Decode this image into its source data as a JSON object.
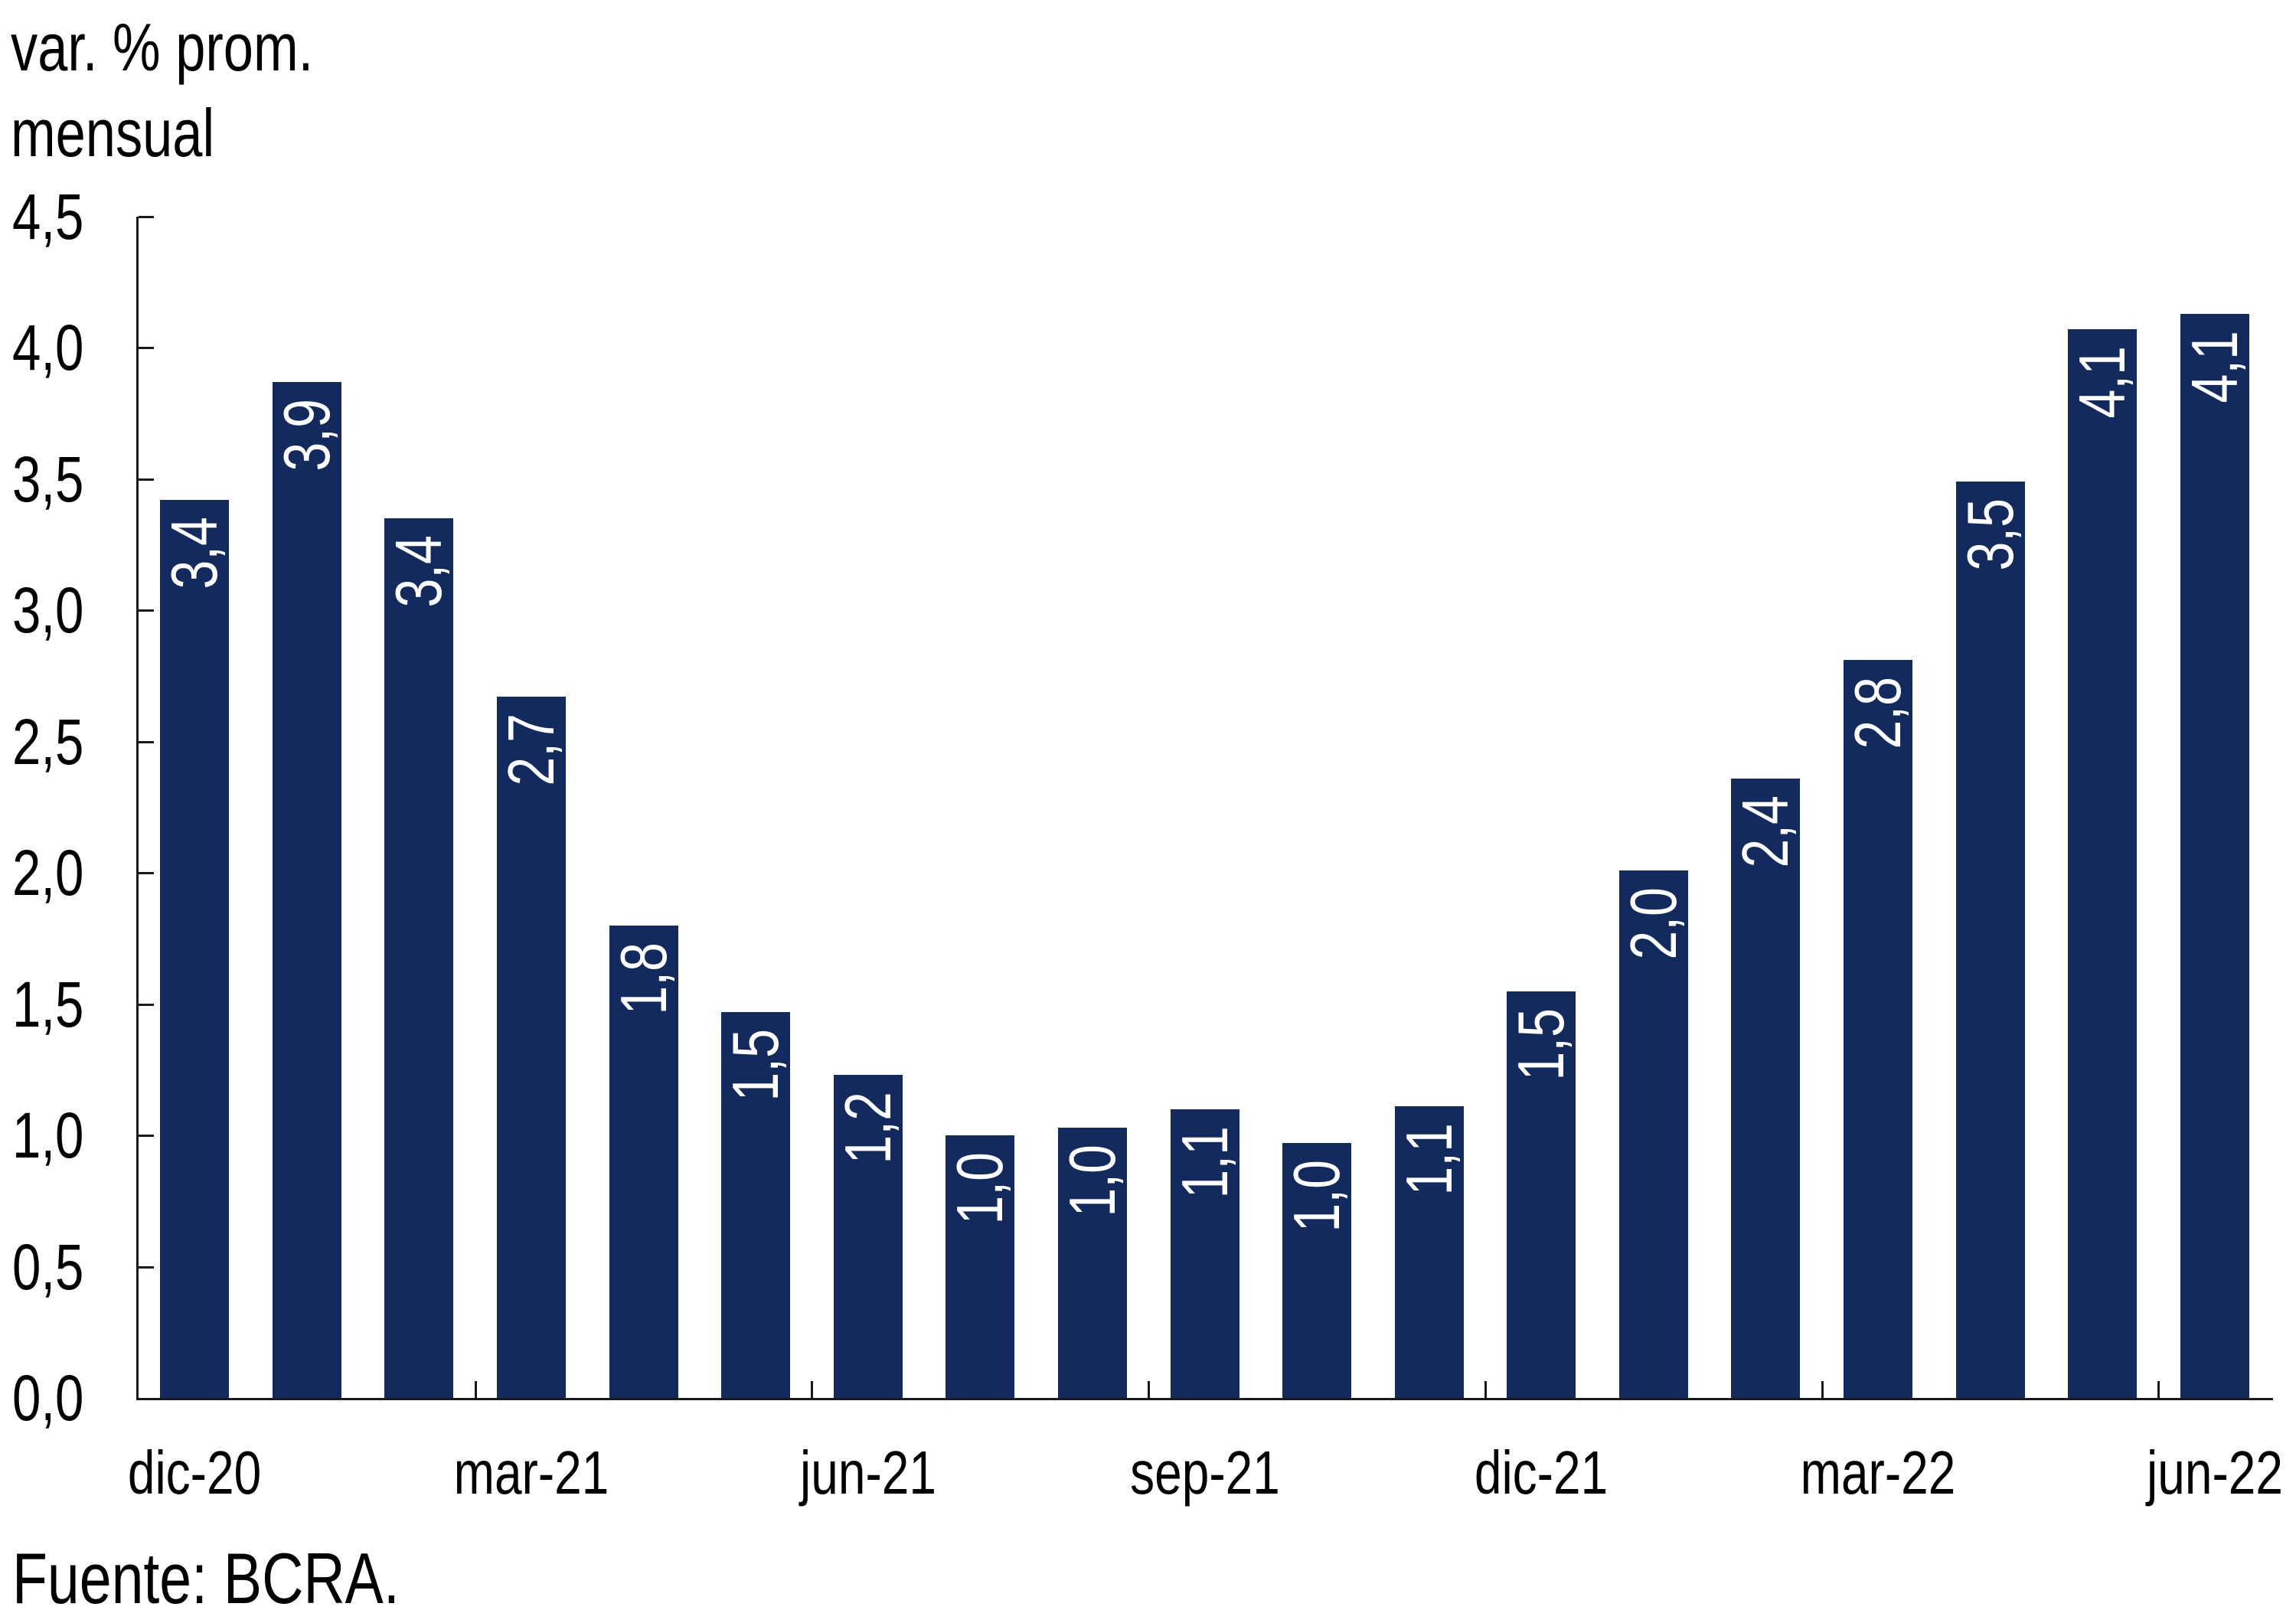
{
  "chart_data": {
    "type": "bar",
    "y_axis_title_line1": "var. % prom.",
    "y_axis_title_line2": "mensual",
    "source": "Fuente: BCRA.",
    "y_tick_labels": [
      "0,0",
      "0,5",
      "1,0",
      "1,5",
      "2,0",
      "2,5",
      "3,0",
      "3,5",
      "4,0",
      "4,5"
    ],
    "ylim": [
      0,
      4.5
    ],
    "y_step": 0.5,
    "n_bars": 19,
    "values": [
      3.42,
      3.87,
      3.35,
      2.67,
      1.8,
      1.47,
      1.23,
      1.0,
      1.03,
      1.1,
      0.97,
      1.11,
      1.55,
      2.01,
      2.36,
      2.81,
      3.49,
      4.07,
      4.13
    ],
    "data_labels": [
      "3,4",
      "3,9",
      "3,4",
      "2,7",
      "1,8",
      "1,5",
      "1,2",
      "1,0",
      "1,0",
      "1,1",
      "1,0",
      "1,1",
      "1,5",
      "2,0",
      "2,4",
      "2,8",
      "3,5",
      "4,1",
      "4,1"
    ],
    "x_tick_labels": [
      "dic-20",
      "mar-21",
      "jun-21",
      "sep-21",
      "dic-21",
      "mar-22",
      "jun-22"
    ],
    "x_label_slots": [
      0,
      3,
      6,
      9,
      12,
      15,
      18
    ],
    "x_boundary_tick_slots": [
      3,
      6,
      9,
      12,
      15,
      18
    ],
    "grid": "off",
    "legend": "none",
    "colors": {
      "bar": "#122A5E",
      "axis": "#1a1a1a",
      "text": "#000000",
      "data_label": "#ffffff",
      "background": "#ffffff"
    }
  }
}
